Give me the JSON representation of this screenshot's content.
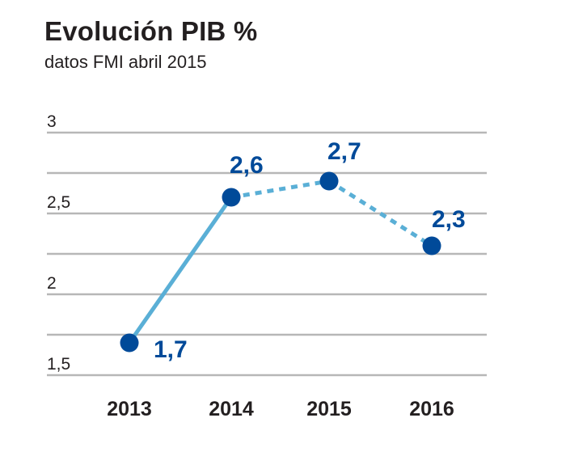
{
  "chart_data": {
    "type": "line",
    "title": "Evolución PIB %",
    "subtitle": "datos FMI abril 2015",
    "categories": [
      "2013",
      "2014",
      "2015",
      "2016"
    ],
    "values": [
      1.7,
      2.6,
      2.7,
      2.3
    ],
    "value_labels": [
      "1,7",
      "2,6",
      "2,7",
      "2,3"
    ],
    "ylim": [
      1.5,
      3
    ],
    "y_gridlines": [
      1.5,
      1.75,
      2,
      2.25,
      2.5,
      2.75,
      3
    ],
    "y_ticks": [
      {
        "value": 3,
        "label": "3"
      },
      {
        "value": 2.5,
        "label": "2,5"
      },
      {
        "value": 2,
        "label": "2"
      },
      {
        "value": 1.5,
        "label": "1,5"
      }
    ],
    "segment_styles": [
      "solid",
      "dashed",
      "dashed"
    ],
    "grid": true,
    "legend": "none",
    "colors": {
      "solid_line": "#5aafd6",
      "dashed_line": "#5aafd6",
      "marker": "#004a99",
      "data_label": "#004a99",
      "gridline": "#b7b7b7"
    }
  }
}
